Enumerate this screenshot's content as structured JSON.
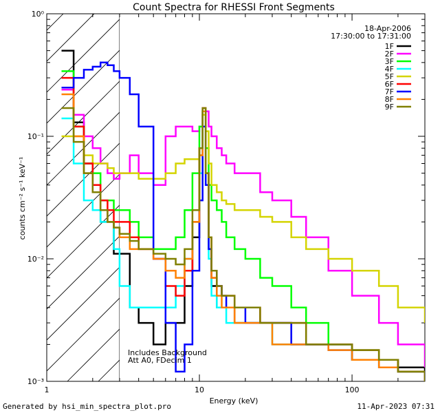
{
  "chart_data": {
    "type": "line",
    "title": "Count Spectra for RHESSI Front Segments",
    "xlabel": "Energy (keV)",
    "ylabel": "counts cm⁻² s⁻¹ keV⁻¹",
    "xscale": "log",
    "yscale": "log",
    "xlim": [
      1,
      300
    ],
    "ylim": [
      0.001,
      1
    ],
    "x_ticks": [
      {
        "v": 1,
        "label": "1"
      },
      {
        "v": 10,
        "label": "10"
      },
      {
        "v": 100,
        "label": "100"
      }
    ],
    "y_ticks": [
      {
        "v": 0.001,
        "label": "10⁻³"
      },
      {
        "v": 0.01,
        "label": "10⁻²"
      },
      {
        "v": 0.1,
        "label": "10⁻¹"
      },
      {
        "v": 1,
        "label": "10⁰"
      }
    ],
    "header": {
      "date": "18-Apr-2006",
      "time_range": "17:30:00 to 17:31:00"
    },
    "annotations": [
      "Includes Background",
      "Att A0, FDecim 1"
    ],
    "shaded_region_x": [
      1,
      3
    ],
    "series": [
      {
        "name": "1F",
        "color": "#000000",
        "x": [
          1.25,
          1.5,
          1.75,
          2,
          2.25,
          2.5,
          2.75,
          3,
          3.5,
          4,
          5,
          6,
          7,
          8,
          9,
          10,
          10.5,
          11,
          11.5,
          12,
          13,
          14,
          15,
          17,
          20,
          25,
          30,
          40,
          50,
          70,
          100,
          150,
          200,
          300
        ],
        "y": [
          0.5,
          0.13,
          0.06,
          0.04,
          0.02,
          0.02,
          0.011,
          0.011,
          0.004,
          0.003,
          0.002,
          0.003,
          0.003,
          0.006,
          0.015,
          0.07,
          0.16,
          0.04,
          0.012,
          0.006,
          0.004,
          0.004,
          0.004,
          0.003,
          0.003,
          0.003,
          0.003,
          0.002,
          0.002,
          0.002,
          0.0015,
          0.0015,
          0.0013,
          0.0011
        ]
      },
      {
        "name": "2F",
        "color": "#ff00ff",
        "x": [
          1.25,
          1.5,
          1.75,
          2,
          2.25,
          2.5,
          2.75,
          3,
          3.5,
          4,
          5,
          6,
          7,
          8,
          9,
          10,
          10.5,
          11,
          11.5,
          12,
          13,
          14,
          15,
          17,
          20,
          25,
          30,
          40,
          50,
          70,
          100,
          150,
          200,
          300
        ],
        "y": [
          0.24,
          0.15,
          0.1,
          0.08,
          0.06,
          0.05,
          0.045,
          0.05,
          0.07,
          0.05,
          0.04,
          0.1,
          0.12,
          0.12,
          0.11,
          0.12,
          0.15,
          0.16,
          0.12,
          0.1,
          0.08,
          0.07,
          0.06,
          0.05,
          0.05,
          0.035,
          0.03,
          0.022,
          0.015,
          0.008,
          0.005,
          0.003,
          0.002,
          0.0013
        ]
      },
      {
        "name": "3F",
        "color": "#00ff00",
        "x": [
          1.25,
          1.5,
          1.75,
          2,
          2.25,
          2.5,
          2.75,
          3,
          3.5,
          4,
          5,
          6,
          7,
          8,
          9,
          10,
          10.5,
          11,
          11.5,
          12,
          13,
          14,
          15,
          17,
          20,
          25,
          30,
          40,
          50,
          70,
          100,
          150,
          200,
          300
        ],
        "y": [
          0.34,
          0.12,
          0.06,
          0.05,
          0.03,
          0.03,
          0.025,
          0.025,
          0.02,
          0.015,
          0.012,
          0.012,
          0.015,
          0.025,
          0.05,
          0.12,
          0.16,
          0.08,
          0.04,
          0.03,
          0.025,
          0.02,
          0.015,
          0.012,
          0.01,
          0.007,
          0.006,
          0.004,
          0.003,
          0.002,
          0.0018,
          0.0015,
          0.0012,
          0.001
        ]
      },
      {
        "name": "4F",
        "color": "#00ffff",
        "x": [
          1.25,
          1.5,
          1.75,
          2,
          2.25,
          2.5,
          2.75,
          3,
          3.5,
          4,
          5,
          6,
          7,
          8,
          9,
          10,
          10.5,
          11,
          11.5,
          12,
          13,
          14,
          15,
          17,
          20,
          25,
          30,
          40,
          50,
          70,
          100,
          150,
          200,
          300
        ],
        "y": [
          0.14,
          0.06,
          0.03,
          0.025,
          0.02,
          0.02,
          0.012,
          0.006,
          0.004,
          0.004,
          0.004,
          0.004,
          0.006,
          0.01,
          0.02,
          0.05,
          0.15,
          0.04,
          0.01,
          0.005,
          0.004,
          0.004,
          0.003,
          0.003,
          0.003,
          0.003,
          0.002,
          0.002,
          0.002,
          0.002,
          0.0015,
          0.0013,
          0.0012,
          0.0011
        ]
      },
      {
        "name": "5F",
        "color": "#d4d400",
        "x": [
          1.25,
          1.5,
          1.75,
          2,
          2.25,
          2.5,
          2.75,
          3,
          3.5,
          4,
          5,
          6,
          7,
          8,
          9,
          10,
          10.5,
          11,
          11.5,
          12,
          13,
          14,
          15,
          17,
          20,
          25,
          30,
          40,
          50,
          70,
          100,
          150,
          200,
          300
        ],
        "y": [
          0.1,
          0.1,
          0.07,
          0.06,
          0.06,
          0.055,
          0.05,
          0.05,
          0.05,
          0.045,
          0.045,
          0.05,
          0.06,
          0.065,
          0.065,
          0.08,
          0.15,
          0.11,
          0.06,
          0.04,
          0.035,
          0.03,
          0.028,
          0.025,
          0.025,
          0.022,
          0.02,
          0.015,
          0.012,
          0.01,
          0.008,
          0.006,
          0.004,
          0.003
        ]
      },
      {
        "name": "6F",
        "color": "#ff0000",
        "x": [
          1.25,
          1.5,
          1.75,
          2,
          2.25,
          2.5,
          2.75,
          3,
          3.5,
          4,
          5,
          6,
          7,
          8,
          9,
          10,
          10.5,
          11,
          11.5,
          12,
          13,
          14,
          15,
          17,
          20,
          25,
          30,
          40,
          50,
          70,
          100,
          150,
          200,
          300
        ],
        "y": [
          0.3,
          0.12,
          0.06,
          0.04,
          0.03,
          0.025,
          0.02,
          0.02,
          0.015,
          0.012,
          0.01,
          0.006,
          0.005,
          0.008,
          0.02,
          0.08,
          0.17,
          0.05,
          0.015,
          0.007,
          0.006,
          0.005,
          0.005,
          0.004,
          0.004,
          0.003,
          0.003,
          0.003,
          0.002,
          0.002,
          0.0018,
          0.0015,
          0.0012,
          0.001
        ]
      },
      {
        "name": "7F",
        "color": "#0000ff",
        "x": [
          1.25,
          1.5,
          1.75,
          2,
          2.25,
          2.5,
          2.75,
          3,
          3.5,
          4,
          5,
          6,
          7,
          8,
          9,
          10,
          10.5,
          11,
          11.5,
          12,
          13,
          14,
          15,
          17,
          20,
          25,
          30,
          40,
          50,
          70,
          100,
          150,
          200,
          300
        ],
        "y": [
          0.25,
          0.3,
          0.35,
          0.37,
          0.4,
          0.38,
          0.34,
          0.3,
          0.22,
          0.12,
          0.01,
          0.003,
          0.0012,
          0.002,
          0.008,
          0.03,
          0.12,
          0.04,
          0.012,
          0.008,
          0.006,
          0.005,
          0.004,
          0.004,
          0.003,
          0.003,
          0.003,
          0.002,
          0.002,
          0.0018,
          0.0015,
          0.0013,
          0.0012,
          0.001
        ]
      },
      {
        "name": "8F",
        "color": "#ff8000",
        "x": [
          1.25,
          1.5,
          1.75,
          2,
          2.25,
          2.5,
          2.75,
          3,
          3.5,
          4,
          5,
          6,
          7,
          8,
          9,
          10,
          10.5,
          11,
          11.5,
          12,
          13,
          14,
          15,
          17,
          20,
          25,
          30,
          40,
          50,
          70,
          100,
          150,
          200,
          300
        ],
        "y": [
          0.22,
          0.1,
          0.05,
          0.035,
          0.025,
          0.02,
          0.018,
          0.015,
          0.012,
          0.012,
          0.01,
          0.008,
          0.007,
          0.01,
          0.02,
          0.07,
          0.16,
          0.05,
          0.015,
          0.007,
          0.005,
          0.004,
          0.004,
          0.003,
          0.003,
          0.003,
          0.002,
          0.002,
          0.002,
          0.0018,
          0.0015,
          0.0013,
          0.0012,
          0.001
        ]
      },
      {
        "name": "9F",
        "color": "#808000",
        "x": [
          1.25,
          1.5,
          1.75,
          2,
          2.25,
          2.5,
          2.75,
          3,
          3.5,
          4,
          5,
          6,
          7,
          8,
          9,
          10,
          10.5,
          11,
          11.5,
          12,
          13,
          14,
          15,
          17,
          20,
          25,
          30,
          40,
          50,
          70,
          100,
          150,
          200,
          300
        ],
        "y": [
          0.17,
          0.09,
          0.05,
          0.035,
          0.025,
          0.02,
          0.018,
          0.016,
          0.014,
          0.012,
          0.011,
          0.01,
          0.009,
          0.012,
          0.025,
          0.08,
          0.17,
          0.05,
          0.015,
          0.008,
          0.006,
          0.005,
          0.005,
          0.004,
          0.004,
          0.003,
          0.003,
          0.003,
          0.002,
          0.002,
          0.0018,
          0.0015,
          0.0012,
          0.001
        ]
      }
    ]
  },
  "footer": {
    "generator": "Generated by hsi_min_spectra_plot.pro",
    "timestamp": "11-Apr-2023 07:31"
  }
}
